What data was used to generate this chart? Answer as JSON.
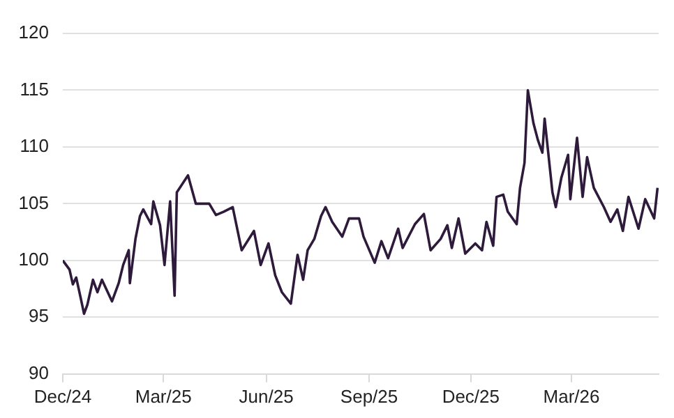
{
  "chart_data": {
    "type": "line",
    "x": [
      "2024-12-01",
      "2024-12-07",
      "2024-12-10",
      "2024-12-13",
      "2024-12-17",
      "2024-12-20",
      "2024-12-23",
      "2024-12-28",
      "2025-01-01",
      "2025-01-05",
      "2025-01-14",
      "2025-01-20",
      "2025-01-24",
      "2025-01-29",
      "2025-01-30",
      "2025-02-04",
      "2025-02-08",
      "2025-02-11",
      "2025-02-18",
      "2025-02-20",
      "2025-02-26",
      "2025-03-02",
      "2025-03-07",
      "2025-03-11",
      "2025-03-13",
      "2025-03-23",
      "2025-03-30",
      "2025-04-11",
      "2025-04-17",
      "2025-04-24",
      "2025-05-02",
      "2025-05-10",
      "2025-05-21",
      "2025-05-27",
      "2025-06-03",
      "2025-06-09",
      "2025-06-15",
      "2025-06-23",
      "2025-06-29",
      "2025-07-04",
      "2025-07-08",
      "2025-07-14",
      "2025-07-20",
      "2025-07-24",
      "2025-07-30",
      "2025-08-08",
      "2025-08-14",
      "2025-08-23",
      "2025-08-27",
      "2025-09-06",
      "2025-09-12",
      "2025-09-18",
      "2025-09-27",
      "2025-10-01",
      "2025-10-12",
      "2025-10-20",
      "2025-10-26",
      "2025-11-04",
      "2025-11-10",
      "2025-11-14",
      "2025-11-20",
      "2025-11-26",
      "2025-12-05",
      "2025-12-11",
      "2025-12-15",
      "2025-12-21",
      "2025-12-24",
      "2025-12-30",
      "2026-01-03",
      "2026-01-11",
      "2026-01-14",
      "2026-01-18",
      "2026-01-21",
      "2026-01-26",
      "2026-01-30",
      "2026-02-03",
      "2026-02-05",
      "2026-02-12",
      "2026-02-15",
      "2026-02-20",
      "2026-02-26",
      "2026-02-28",
      "2026-03-06",
      "2026-03-11",
      "2026-03-15",
      "2026-03-21",
      "2026-03-30",
      "2026-04-05",
      "2026-04-11",
      "2026-04-16",
      "2026-04-21",
      "2026-04-30",
      "2026-05-06",
      "2026-05-14",
      "2026-05-17"
    ],
    "series": [
      {
        "color": "#2e1a3a",
        "values": [
          100.0,
          99.2,
          97.9,
          98.5,
          96.7,
          95.3,
          96.1,
          98.3,
          97.2,
          98.3,
          96.4,
          98.0,
          99.6,
          100.9,
          98.0,
          101.9,
          103.9,
          104.5,
          103.2,
          105.2,
          103.1,
          99.6,
          105.2,
          96.9,
          106.0,
          107.5,
          105.0,
          105.0,
          104.0,
          104.3,
          104.7,
          100.9,
          102.6,
          99.6,
          101.5,
          98.7,
          97.2,
          96.2,
          100.5,
          98.3,
          100.9,
          101.9,
          103.9,
          104.7,
          103.4,
          102.1,
          103.7,
          103.7,
          102.1,
          99.8,
          101.7,
          100.2,
          102.8,
          101.1,
          103.2,
          104.1,
          100.9,
          101.9,
          103.1,
          101.1,
          103.7,
          100.6,
          101.5,
          100.9,
          103.4,
          101.3,
          105.6,
          105.8,
          104.3,
          103.2,
          106.4,
          108.6,
          115.0,
          112.1,
          110.6,
          109.5,
          112.5,
          106.0,
          104.7,
          107.3,
          109.3,
          105.4,
          110.8,
          105.6,
          109.1,
          106.4,
          104.7,
          103.4,
          104.5,
          102.6,
          105.6,
          102.8,
          105.4,
          103.7,
          106.4
        ]
      }
    ],
    "xlim": [
      "2024-12-01",
      "2026-05-18"
    ],
    "xticks": [
      {
        "value": "2024-12-01",
        "label": "Dec/24"
      },
      {
        "value": "2025-03-01",
        "label": "Mar/25"
      },
      {
        "value": "2025-06-01",
        "label": "Jun/25"
      },
      {
        "value": "2025-09-01",
        "label": "Sep/25"
      },
      {
        "value": "2025-12-01",
        "label": "Dec/25"
      },
      {
        "value": "2026-03-01",
        "label": "Mar/26"
      }
    ],
    "ylim": [
      90,
      120
    ],
    "yticks": [
      90,
      95,
      100,
      105,
      110,
      115,
      120
    ],
    "grid": "y",
    "marker": "none",
    "line_style": "solid",
    "legend": false
  }
}
